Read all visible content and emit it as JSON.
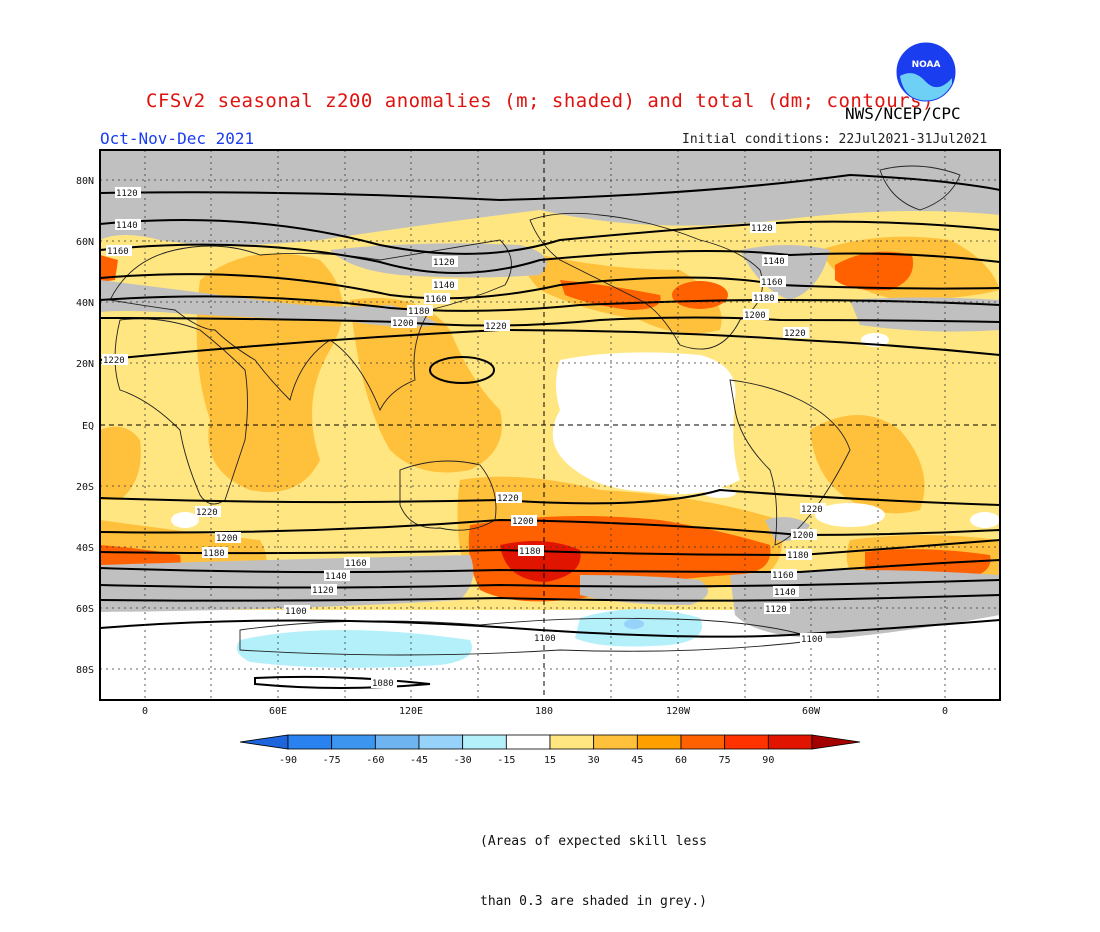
{
  "header": {
    "title": "CFSv2 seasonal z200 anomalies (m; shaded) and total (dm; contours)",
    "agency": "NWS/NCEP/CPC",
    "season": "Oct-Nov-Dec 2021",
    "initial_conditions": "Initial conditions: 22Jul2021-31Jul2021",
    "logo_text": "NOAA"
  },
  "map": {
    "lat_labels": [
      "80N",
      "60N",
      "40N",
      "20N",
      "EQ",
      "20S",
      "40S",
      "60S",
      "80S"
    ],
    "lon_labels": [
      "0",
      "60E",
      "120E",
      "180",
      "120W",
      "60W",
      "0"
    ],
    "contour_labels": [
      "1080",
      "1100",
      "1120",
      "1140",
      "1160",
      "1180",
      "1200",
      "1220"
    ]
  },
  "legend": {
    "ticks": [
      "-90",
      "-75",
      "-60",
      "-45",
      "-30",
      "-15",
      "15",
      "30",
      "45",
      "60",
      "75",
      "90"
    ],
    "colors": [
      "#1e64dc",
      "#2a82f0",
      "#3c96f0",
      "#6eb4f0",
      "#96d2fa",
      "#b4f0fa",
      "#ffffff",
      "#ffe680",
      "#ffc03c",
      "#ffa000",
      "#ff6000",
      "#ff3200",
      "#e11400",
      "#a50000"
    ]
  },
  "note": {
    "line1": "(Areas of expected skill less",
    "line2": "than 0.3 are shaded in grey.)"
  }
}
